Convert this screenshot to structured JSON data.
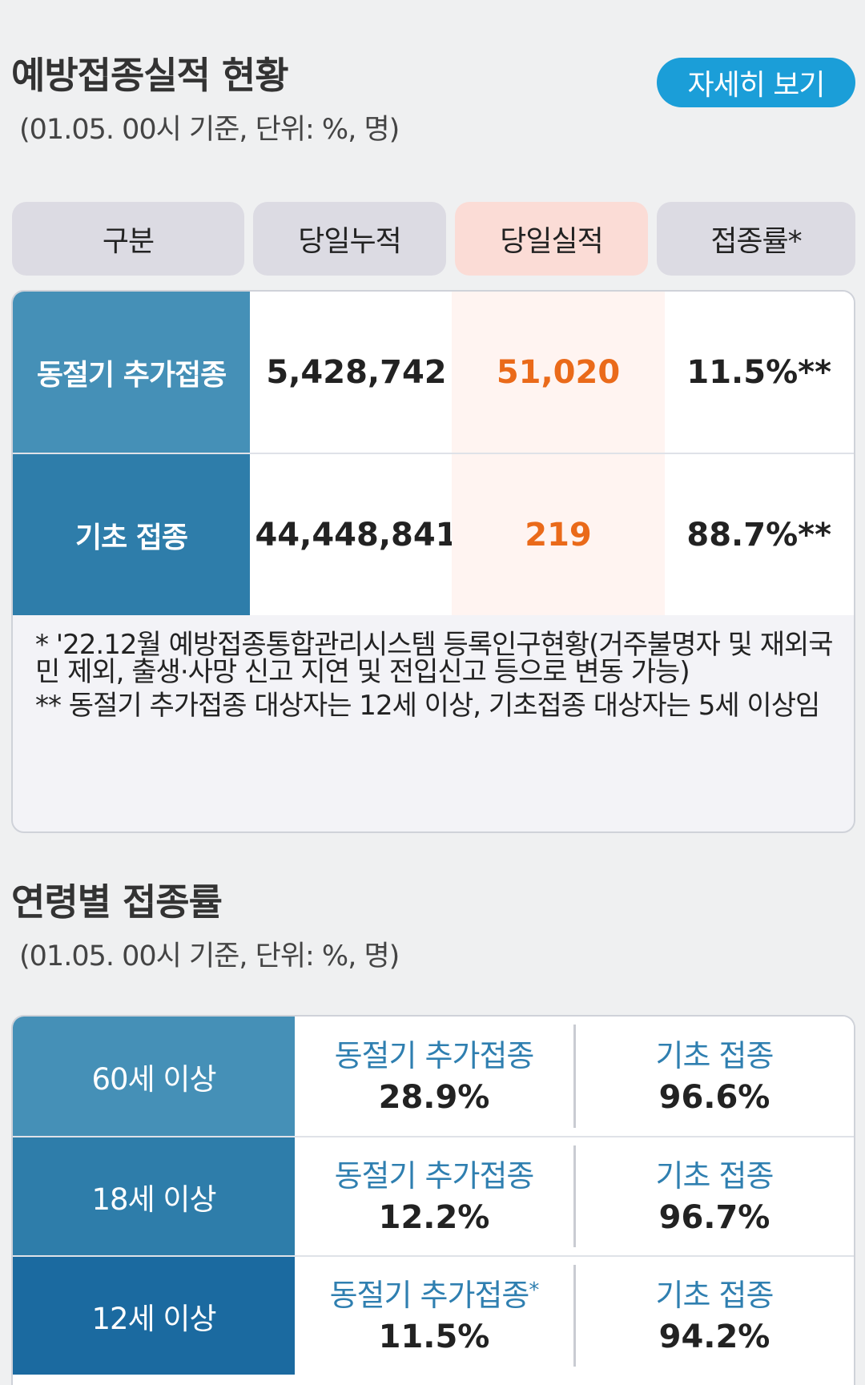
{
  "section1": {
    "title": "예방접종실적 현황",
    "subtitle": "(01.05. 00시 기준, 단위: %, 명)",
    "detail_button": "자세히 보기",
    "headers": [
      "구분",
      "당일누적",
      "당일실적",
      "접종률*"
    ],
    "rows": [
      {
        "label": "동절기 추가접종",
        "cumulative": "5,428,742",
        "daily": "51,020",
        "rate": "11.5%**"
      },
      {
        "label": "기초 접종",
        "cumulative": "44,448,841",
        "daily": "219",
        "rate": "88.7%**"
      }
    ],
    "note1": "* '22.12월 예방접종통합관리시스템 등록인구현황(거주불명자 및 재외국민 제외, 출생·사망 신고 지연 및 전입신고 등으로 변동 가능)",
    "note2": "** 동절기 추가접종 대상자는 12세 이상, 기초접종 대상자는 5세 이상임"
  },
  "section2": {
    "title": "연령별 접종률",
    "subtitle": "(01.05. 00시 기준, 단위: %, 명)",
    "rows": [
      {
        "label": "60세 이상",
        "booster_label": "동절기 추가접종",
        "booster_mark": "",
        "booster_rate": "28.9%",
        "primary_label": "기초 접종",
        "primary_rate": "96.6%"
      },
      {
        "label": "18세 이상",
        "booster_label": "동절기 추가접종",
        "booster_mark": "",
        "booster_rate": "12.2%",
        "primary_label": "기초 접종",
        "primary_rate": "96.7%"
      },
      {
        "label": "12세 이상",
        "booster_label": "동절기 추가접종",
        "booster_mark": "*",
        "booster_rate": "11.5%",
        "primary_label": "기초 접종",
        "primary_rate": "94.2%"
      }
    ]
  },
  "colors": {
    "accent_button": "#1b9ed8",
    "row_label_1": "#4590b7",
    "row_label_2": "#2e7daa",
    "row_label_3": "#1b6aa0",
    "daily_value": "#ea6a1a"
  }
}
